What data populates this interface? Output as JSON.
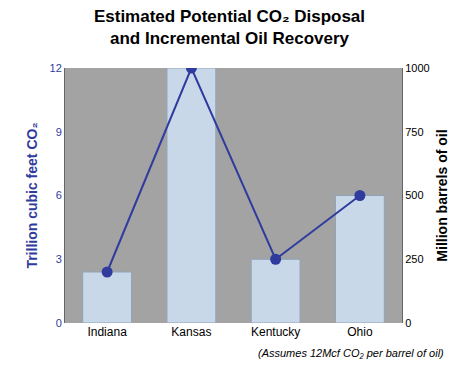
{
  "chart_data": {
    "type": "bar",
    "title": [
      "Estimated Potential CO₂ Disposal",
      "and Incremental Oil Recovery"
    ],
    "y_label": "Trillion cubic feet CO₂",
    "y2_label": "Million barrels of oil",
    "annotations": [
      "(Assumes 12Mcf CO₂ per barrel of oil)"
    ],
    "categories": [
      "Indiana",
      "Kansas",
      "Kentucky",
      "Ohio"
    ],
    "series": [
      {
        "type": "bar",
        "color": "#c8d8e8",
        "values": [
          2.4,
          12,
          3,
          6
        ]
      },
      {
        "type": "line",
        "axis": "y2",
        "color": "#2f3c9e",
        "marker": "circle",
        "line_style": "solid",
        "values": [
          200,
          1000,
          250,
          500
        ]
      }
    ],
    "ylim": [
      0,
      12
    ],
    "yticks": [
      0,
      3,
      6,
      9,
      12
    ],
    "y2lim": [
      0,
      1000
    ],
    "y2ticks": [
      0,
      250,
      500,
      750,
      1000
    ],
    "grid": false
  }
}
